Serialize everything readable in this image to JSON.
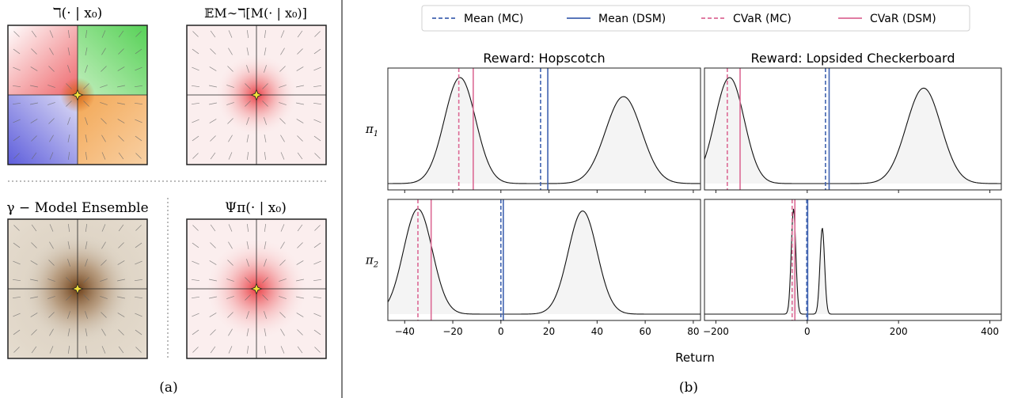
{
  "panel_a": {
    "caption": "(a)",
    "titles": {
      "top_left": "ℸ(· | x₀)",
      "top_right": "𝔼M∼ℸ[M(· | x₀)]",
      "bottom_left": "γ − Model Ensemble",
      "bottom_right": "Ψπ(· | x₀)"
    },
    "colors": {
      "red": "#e8343a",
      "green": "#2fc62f",
      "blue": "#3b3bd8",
      "orange": "#f08a1c",
      "brown": "#7a4b22",
      "star": "#f2e13a"
    }
  },
  "panel_b": {
    "caption": "(b)",
    "legend": {
      "items": [
        {
          "label": "Mean (MC)",
          "style": "dashed",
          "color": "#4063b0"
        },
        {
          "label": "Mean (DSM)",
          "style": "solid",
          "color": "#4063b0"
        },
        {
          "label": "CVaR (MC)",
          "style": "dashed",
          "color": "#dc6a95"
        },
        {
          "label": "CVaR (DSM)",
          "style": "solid",
          "color": "#dc6a95"
        }
      ]
    },
    "xlabel": "Return",
    "col_titles": [
      "Reward: Hopscotch",
      "Reward: Lopsided Checkerboard"
    ],
    "row_labels": [
      "π1",
      "π2"
    ]
  },
  "chart_data": [
    {
      "type": "area",
      "name": "Hopscotch π1",
      "xlim": [
        -47,
        83
      ],
      "xticks": [
        -40,
        -20,
        0,
        20,
        40,
        60,
        80
      ],
      "modes": [
        {
          "mu": -17,
          "sigma": 6.5,
          "height": 1.0
        },
        {
          "mu": 51,
          "sigma": 7.5,
          "height": 0.82
        }
      ],
      "mean_mc": 16.5,
      "mean_dsm": 19.5,
      "cvar_mc": -17.5,
      "cvar_dsm": -11.5
    },
    {
      "type": "area",
      "name": "Lopsided Checkerboard π1",
      "xlim": [
        -225,
        425
      ],
      "xticks": [
        -200,
        0,
        200,
        400
      ],
      "modes": [
        {
          "mu": -170,
          "sigma": 32,
          "height": 1.0
        },
        {
          "mu": 255,
          "sigma": 38,
          "height": 0.9
        }
      ],
      "mean_mc": 40,
      "mean_dsm": 48,
      "cvar_mc": -175,
      "cvar_dsm": -147
    },
    {
      "type": "area",
      "name": "Hopscotch π2",
      "xlim": [
        -47,
        83
      ],
      "xticks": [
        -40,
        -20,
        0,
        20,
        40,
        60,
        80
      ],
      "modes": [
        {
          "mu": -34.5,
          "sigma": 6,
          "height": 1.0
        },
        {
          "mu": 34,
          "sigma": 6,
          "height": 0.98
        }
      ],
      "mean_mc": 0,
      "mean_dsm": 1,
      "cvar_mc": -34.5,
      "cvar_dsm": -29
    },
    {
      "type": "area",
      "name": "Lopsided Checkerboard π2",
      "xlim": [
        -225,
        425
      ],
      "xticks": [
        -200,
        0,
        200,
        400
      ],
      "modes": [
        {
          "mu": -30,
          "sigma": 5,
          "height": 1.0
        },
        {
          "mu": 33,
          "sigma": 5,
          "height": 0.82
        }
      ],
      "mean_mc": -1,
      "mean_dsm": 1,
      "cvar_mc": -33,
      "cvar_dsm": -27
    }
  ]
}
